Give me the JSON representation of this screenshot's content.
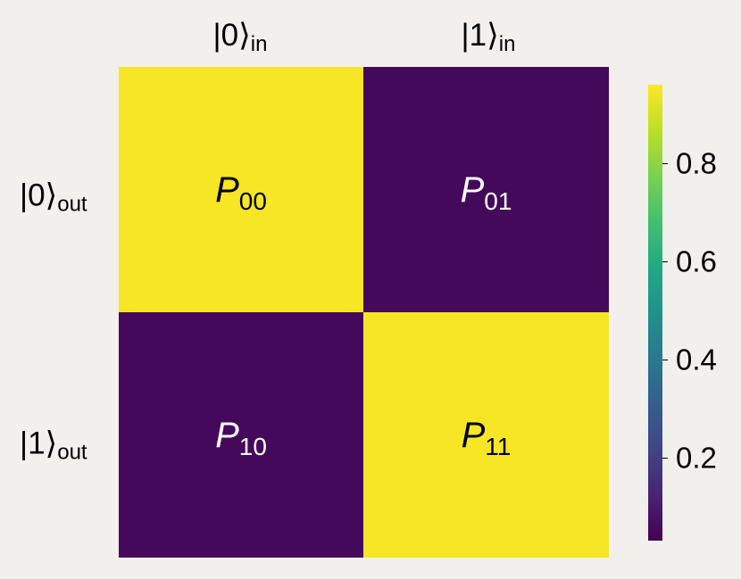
{
  "chart_data": {
    "type": "heatmap",
    "col_labels": [
      {
        "base": "|0⟩",
        "sub": "in"
      },
      {
        "base": "|1⟩",
        "sub": "in"
      }
    ],
    "row_labels": [
      {
        "base": "|0⟩",
        "sub": "out"
      },
      {
        "base": "|1⟩",
        "sub": "out"
      }
    ],
    "cells": [
      {
        "row": 0,
        "col": 0,
        "symbol": "P",
        "sub": "00",
        "value": 0.95
      },
      {
        "row": 0,
        "col": 1,
        "symbol": "P",
        "sub": "01",
        "value": 0.05
      },
      {
        "row": 1,
        "col": 0,
        "symbol": "P",
        "sub": "10",
        "value": 0.05
      },
      {
        "row": 1,
        "col": 1,
        "symbol": "P",
        "sub": "11",
        "value": 0.95
      }
    ],
    "colorbar": {
      "colormap": "viridis",
      "range": [
        0.03,
        0.96
      ],
      "ticks": [
        0.2,
        0.4,
        0.6,
        0.8
      ]
    },
    "colors": {
      "high": "#f9e622",
      "low": "#440154",
      "text_on_high": "#000000",
      "text_on_low": "#ffffff",
      "background": "#f1f0ed"
    }
  }
}
